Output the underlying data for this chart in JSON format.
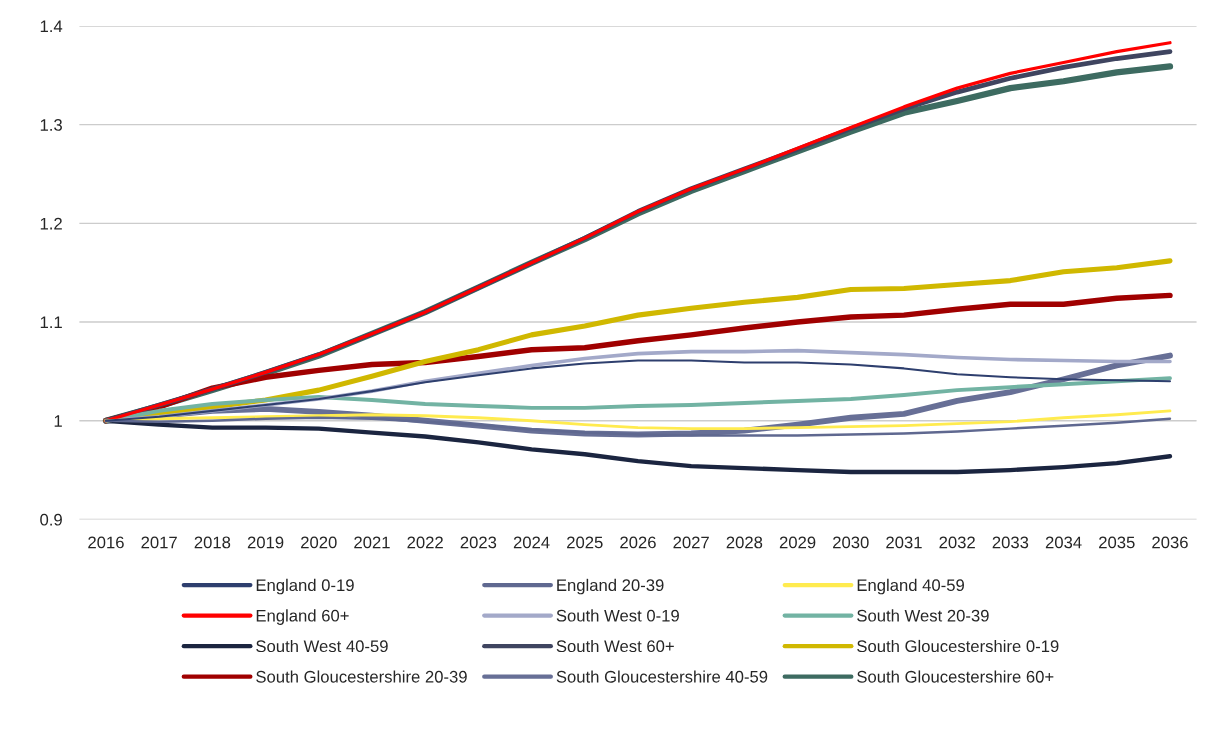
{
  "chart_data": {
    "type": "line",
    "categories": [
      "2016",
      "2017",
      "2018",
      "2019",
      "2020",
      "2021",
      "2022",
      "2023",
      "2024",
      "2025",
      "2026",
      "2027",
      "2028",
      "2029",
      "2030",
      "2031",
      "2032",
      "2033",
      "2034",
      "2035",
      "2036"
    ],
    "ylim": [
      0.9,
      1.4
    ],
    "yticks": [
      {
        "value": 0.9,
        "label": "0.9"
      },
      {
        "value": 1.0,
        "label": "1"
      },
      {
        "value": 1.1,
        "label": "1.1"
      },
      {
        "value": 1.2,
        "label": "1.2"
      },
      {
        "value": 1.3,
        "label": "1.3"
      },
      {
        "value": 1.4,
        "label": "1.4"
      }
    ],
    "grid": "y",
    "legend": "bottom",
    "marker": "none",
    "line_style": "solid",
    "series": [
      {
        "name": "England 0-19",
        "color": "#2e3f6e",
        "values": [
          1.0,
          1.004,
          1.01,
          1.016,
          1.022,
          1.03,
          1.039,
          1.046,
          1.053,
          1.058,
          1.061,
          1.061,
          1.059,
          1.059,
          1.057,
          1.053,
          1.047,
          1.044,
          1.042,
          1.041,
          1.04
        ]
      },
      {
        "name": "England 20-39",
        "color": "#5f6890",
        "values": [
          1.0,
          0.999,
          1.0,
          1.002,
          1.003,
          1.002,
          0.999,
          0.996,
          0.991,
          0.988,
          0.986,
          0.985,
          0.985,
          0.985,
          0.986,
          0.987,
          0.989,
          0.992,
          0.995,
          0.998,
          1.002
        ]
      },
      {
        "name": "England 40-59",
        "color": "#ffeb4f",
        "values": [
          1.0,
          1.002,
          1.003,
          1.004,
          1.005,
          1.006,
          1.005,
          1.003,
          1.0,
          0.996,
          0.993,
          0.992,
          0.992,
          0.993,
          0.994,
          0.995,
          0.997,
          0.999,
          1.003,
          1.006,
          1.01
        ]
      },
      {
        "name": "England 60+",
        "color": "#ff0000",
        "values": [
          1.0,
          1.016,
          1.032,
          1.049,
          1.067,
          1.088,
          1.11,
          1.135,
          1.16,
          1.185,
          1.212,
          1.235,
          1.255,
          1.276,
          1.297,
          1.318,
          1.337,
          1.352,
          1.363,
          1.374,
          1.383
        ]
      },
      {
        "name": "South West 0-19",
        "color": "#a3a9c9",
        "values": [
          1.0,
          1.004,
          1.01,
          1.016,
          1.022,
          1.03,
          1.04,
          1.048,
          1.056,
          1.063,
          1.068,
          1.07,
          1.07,
          1.071,
          1.069,
          1.067,
          1.064,
          1.062,
          1.061,
          1.06,
          1.06
        ]
      },
      {
        "name": "South West 20-39",
        "color": "#72b3a3",
        "values": [
          1.0,
          1.01,
          1.017,
          1.021,
          1.024,
          1.021,
          1.017,
          1.015,
          1.013,
          1.013,
          1.015,
          1.016,
          1.018,
          1.02,
          1.022,
          1.026,
          1.031,
          1.034,
          1.037,
          1.04,
          1.043
        ]
      },
      {
        "name": "South West 40-59",
        "color": "#1b2540",
        "values": [
          1.0,
          0.996,
          0.993,
          0.993,
          0.992,
          0.988,
          0.984,
          0.978,
          0.971,
          0.966,
          0.959,
          0.954,
          0.952,
          0.95,
          0.948,
          0.948,
          0.948,
          0.95,
          0.953,
          0.957,
          0.964
        ]
      },
      {
        "name": "South West 60+",
        "color": "#3f4560",
        "values": [
          1.0,
          1.016,
          1.032,
          1.049,
          1.067,
          1.088,
          1.11,
          1.135,
          1.16,
          1.185,
          1.212,
          1.235,
          1.255,
          1.275,
          1.296,
          1.316,
          1.333,
          1.347,
          1.358,
          1.367,
          1.374
        ]
      },
      {
        "name": "South Gloucestershire 0-19",
        "color": "#d0b800",
        "values": [
          1.0,
          1.007,
          1.014,
          1.021,
          1.031,
          1.045,
          1.06,
          1.072,
          1.087,
          1.096,
          1.107,
          1.114,
          1.12,
          1.125,
          1.133,
          1.134,
          1.138,
          1.142,
          1.151,
          1.155,
          1.162
        ]
      },
      {
        "name": "South Gloucestershire 20-39",
        "color": "#a00000",
        "values": [
          1.0,
          1.014,
          1.033,
          1.044,
          1.051,
          1.057,
          1.059,
          1.065,
          1.072,
          1.074,
          1.081,
          1.087,
          1.094,
          1.1,
          1.105,
          1.107,
          1.113,
          1.118,
          1.118,
          1.124,
          1.127
        ]
      },
      {
        "name": "South Gloucestershire 40-59",
        "color": "#676f96",
        "values": [
          1.0,
          1.005,
          1.01,
          1.012,
          1.009,
          1.005,
          1.0,
          0.995,
          0.99,
          0.987,
          0.986,
          0.987,
          0.99,
          0.996,
          1.003,
          1.007,
          1.02,
          1.029,
          1.042,
          1.056,
          1.066
        ]
      },
      {
        "name": "South Gloucestershire 60+",
        "color": "#3d6b61",
        "values": [
          1.0,
          1.015,
          1.031,
          1.048,
          1.066,
          1.088,
          1.11,
          1.135,
          1.16,
          1.184,
          1.21,
          1.233,
          1.253,
          1.273,
          1.293,
          1.312,
          1.324,
          1.337,
          1.344,
          1.353,
          1.359
        ]
      }
    ]
  }
}
